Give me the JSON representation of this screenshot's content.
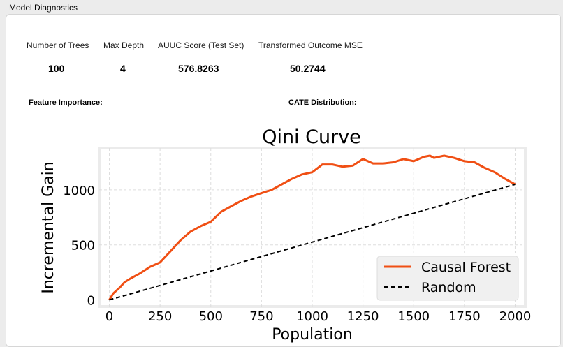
{
  "window": {
    "title": "Model Diagnostics"
  },
  "metrics": {
    "num_trees_label": "Number of Trees",
    "num_trees_value": "100",
    "max_depth_label": "Max Depth",
    "max_depth_value": "4",
    "auuc_label": "AUUC Score (Test Set)",
    "auuc_value": "576.8263",
    "mse_label": "Transformed Outcome MSE",
    "mse_value": "50.2744"
  },
  "sections": {
    "feature_importance": "Feature Importance:",
    "cate_distribution": "CATE Distribution:"
  },
  "colors": {
    "causal_forest": "#f04f14",
    "random": "#000000",
    "grid": "#dddddd",
    "frame": "#ebebeb"
  },
  "chart_data": {
    "type": "line",
    "title": "Qini Curve",
    "xlabel": "Population",
    "ylabel": "Incremental Gain",
    "xlim": [
      -50,
      2050
    ],
    "ylim": [
      -60,
      1380
    ],
    "xticks": [
      0,
      250,
      500,
      750,
      1000,
      1250,
      1500,
      1750,
      2000
    ],
    "yticks": [
      0,
      500,
      1000
    ],
    "grid": true,
    "legend_position": "lower-right",
    "series": [
      {
        "name": "Causal Forest",
        "style": "solid",
        "x": [
          0,
          20,
          50,
          75,
          100,
          150,
          200,
          250,
          300,
          350,
          400,
          450,
          500,
          550,
          600,
          650,
          700,
          750,
          800,
          850,
          900,
          950,
          1000,
          1050,
          1100,
          1150,
          1200,
          1250,
          1300,
          1350,
          1400,
          1450,
          1500,
          1550,
          1580,
          1600,
          1650,
          1700,
          1750,
          1800,
          1850,
          1900,
          1950,
          2000
        ],
        "values": [
          0,
          60,
          110,
          160,
          190,
          240,
          300,
          340,
          440,
          540,
          620,
          670,
          710,
          800,
          850,
          900,
          940,
          970,
          1000,
          1050,
          1100,
          1140,
          1160,
          1230,
          1230,
          1210,
          1220,
          1280,
          1240,
          1240,
          1250,
          1280,
          1260,
          1300,
          1310,
          1290,
          1310,
          1290,
          1260,
          1250,
          1200,
          1160,
          1100,
          1050
        ]
      },
      {
        "name": "Random",
        "style": "dashed",
        "x": [
          0,
          2000
        ],
        "values": [
          0,
          1050
        ]
      }
    ]
  }
}
